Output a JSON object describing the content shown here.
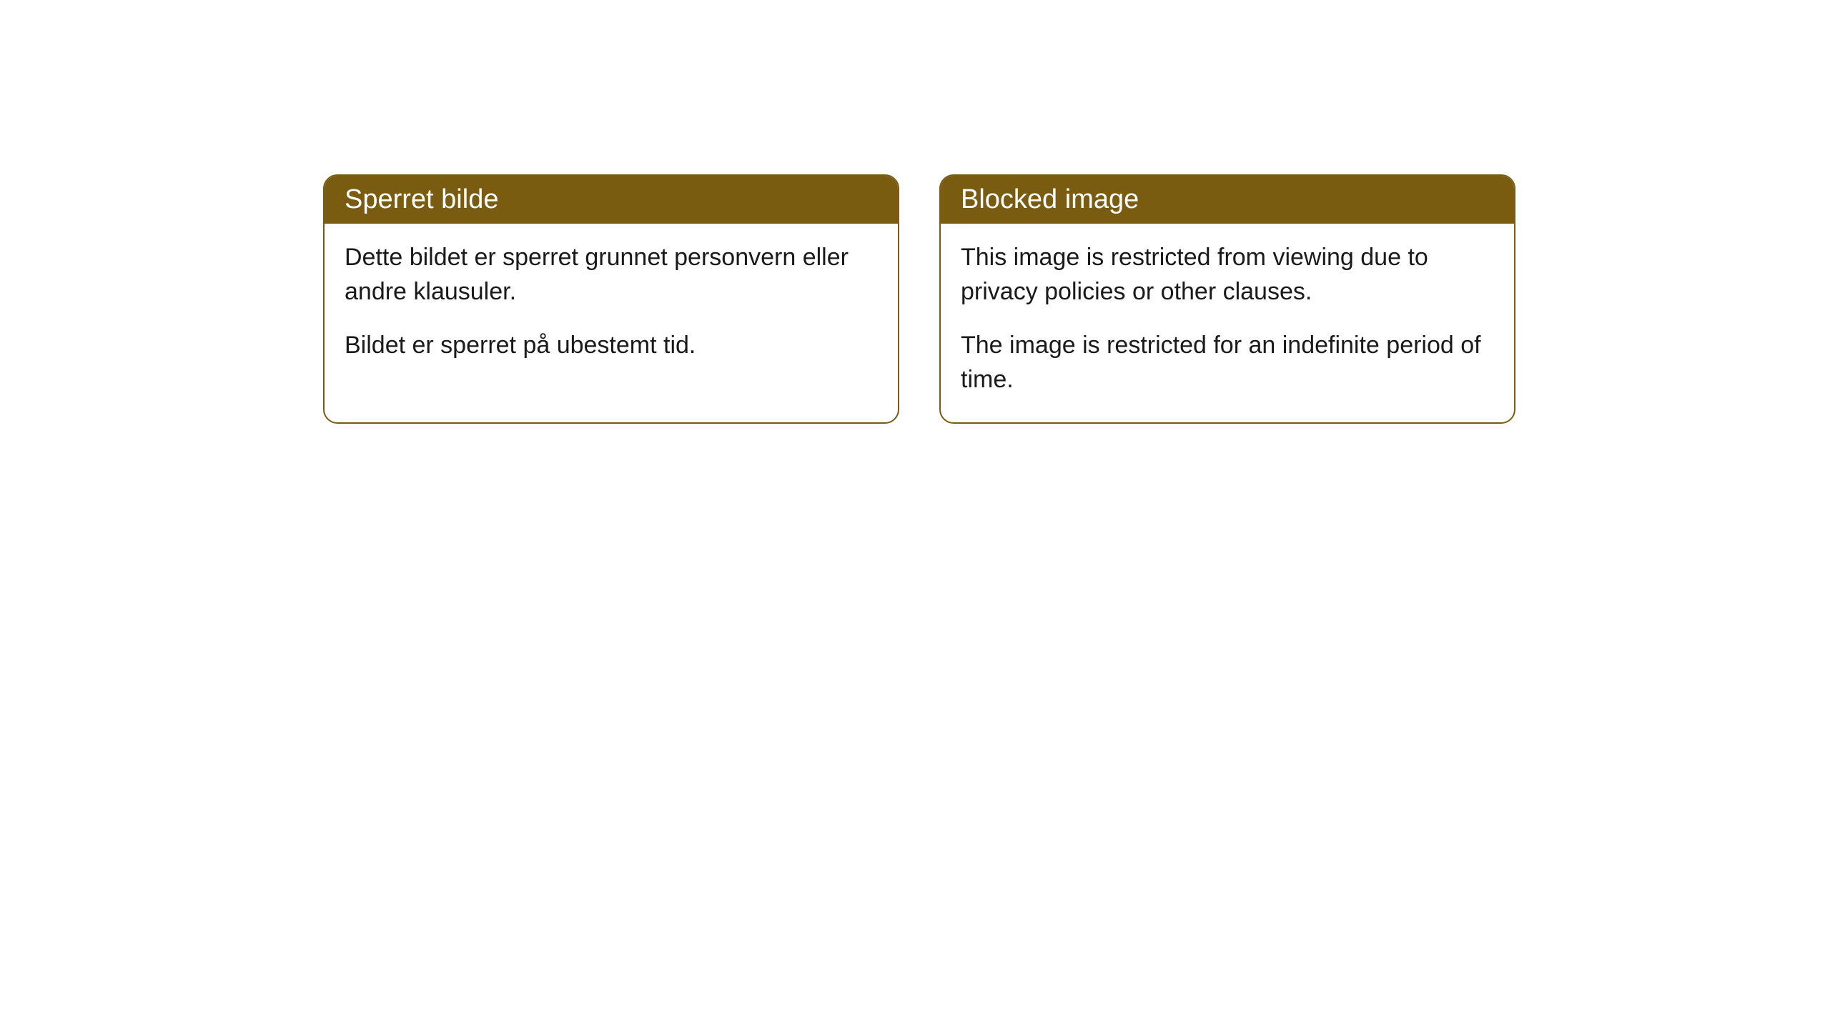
{
  "cards": [
    {
      "title": "Sperret bilde",
      "paragraph1": "Dette bildet er sperret grunnet personvern eller andre klausuler.",
      "paragraph2": "Bildet er sperret på ubestemt tid."
    },
    {
      "title": "Blocked image",
      "paragraph1": "This image is restricted from viewing due to privacy policies or other clauses.",
      "paragraph2": "The image is restricted for an indefinite period of time."
    }
  ],
  "styling": {
    "header_background": "#7a5c10",
    "header_text_color": "#ffffff",
    "border_color": "#7a5c10",
    "body_background": "#ffffff",
    "body_text_color": "#1a1a1a",
    "border_radius": 20,
    "header_fontsize": 38,
    "body_fontsize": 34
  }
}
